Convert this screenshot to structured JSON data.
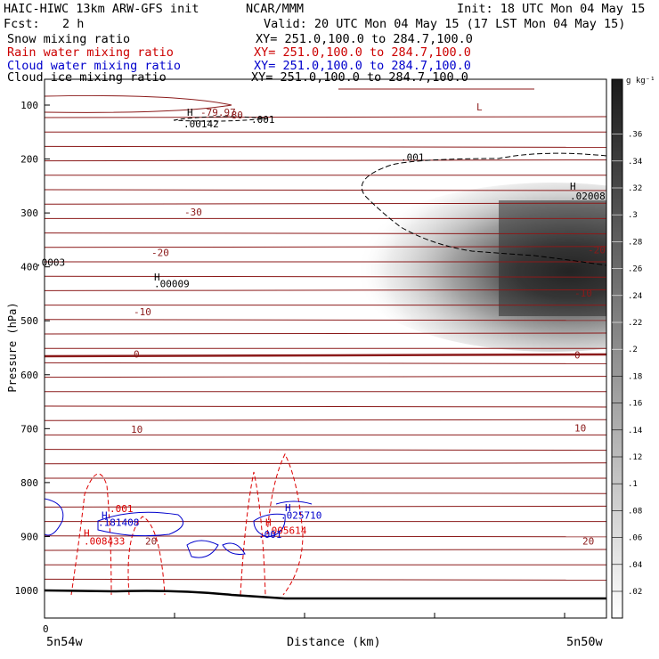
{
  "header": {
    "title": "HAIC-HIWC 13km ARW-GFS init",
    "org": "NCAR/MMM",
    "init": "Init: 18 UTC Mon 04 May 15",
    "fcst_label": "Fcst:",
    "fcst_value": "2 h",
    "valid": "Valid: 20 UTC Mon 04 May 15 (17 LST Mon 04 May 15)",
    "fields": [
      {
        "name": "Snow mixing ratio",
        "xy": "XY= 251.0,100.0 to 284.7,100.0",
        "color": "#000000"
      },
      {
        "name": "Rain water mixing ratio",
        "xy": "XY= 251.0,100.0 to 284.7,100.0",
        "color": "#cc0000"
      },
      {
        "name": "Cloud water mixing ratio",
        "xy": "XY= 251.0,100.0 to 284.7,100.0",
        "color": "#0000cc"
      },
      {
        "name": "Cloud ice mixing ratio",
        "xy": "XY= 251.0,100.0 to 284.7,100.0",
        "color": "#000000"
      }
    ]
  },
  "chart_data": {
    "type": "heatmap",
    "xlabel": "Distance (km)",
    "ylabel": "Pressure (hPa)",
    "x_start_label": "0",
    "x_left_label": "5n54w",
    "x_right_label": "5n50w",
    "y_ticks": [
      100,
      200,
      300,
      400,
      500,
      600,
      700,
      800,
      900,
      1000
    ],
    "colorbar": {
      "unit": "g kg⁻¹",
      "ticks": [
        ".02",
        ".04",
        ".06",
        ".08",
        ".1",
        ".12",
        ".14",
        ".16",
        ".18",
        ".2",
        ".22",
        ".24",
        ".26",
        ".28",
        ".3",
        ".32",
        ".34",
        ".36"
      ]
    },
    "snow_max": {
      "label": "H",
      "value": ".02008"
    },
    "temperature_labels": [
      {
        "text": "-80",
        "p": 120
      },
      {
        "text": "L",
        "p": 105
      },
      {
        "text": "-79.97",
        "p": 115
      },
      {
        "text": "-30",
        "p": 300
      },
      {
        "text": "-20",
        "p": 370
      },
      {
        "text": "-20",
        "p": 375
      },
      {
        "text": "-10",
        "p": 450
      },
      {
        "text": "-10",
        "p": 485
      },
      {
        "text": "0",
        "p": 565
      },
      {
        "text": "0",
        "p": 563
      },
      {
        "text": "10",
        "p": 700
      },
      {
        "text": "10",
        "p": 703
      },
      {
        "text": "20",
        "p": 910
      },
      {
        "text": "20",
        "p": 910
      }
    ],
    "ice_labels": [
      {
        "text": "H",
        "p": 115
      },
      {
        "text": ".00142",
        "p": 136
      },
      {
        "text": ".001",
        "p": 128
      },
      {
        "text": ".001",
        "p": 198
      },
      {
        "text": ".0003",
        "p": 393
      },
      {
        "text": "H",
        "p": 420
      },
      {
        "text": ".00009",
        "p": 433
      }
    ],
    "rain_labels": [
      {
        "text": ".001",
        "p": 850
      },
      {
        "text": "H",
        "p": 895
      },
      {
        "text": ".008433",
        "p": 910
      },
      {
        "text": "H",
        "p": 875
      },
      {
        "text": ".005614",
        "p": 890
      }
    ],
    "cloud_water_labels": [
      {
        "text": "H",
        "p": 862
      },
      {
        "text": ".181408",
        "p": 875
      },
      {
        "text": "H",
        "p": 848
      },
      {
        "text": ".025710",
        "p": 862
      },
      {
        "text": ".001",
        "p": 898
      }
    ]
  }
}
